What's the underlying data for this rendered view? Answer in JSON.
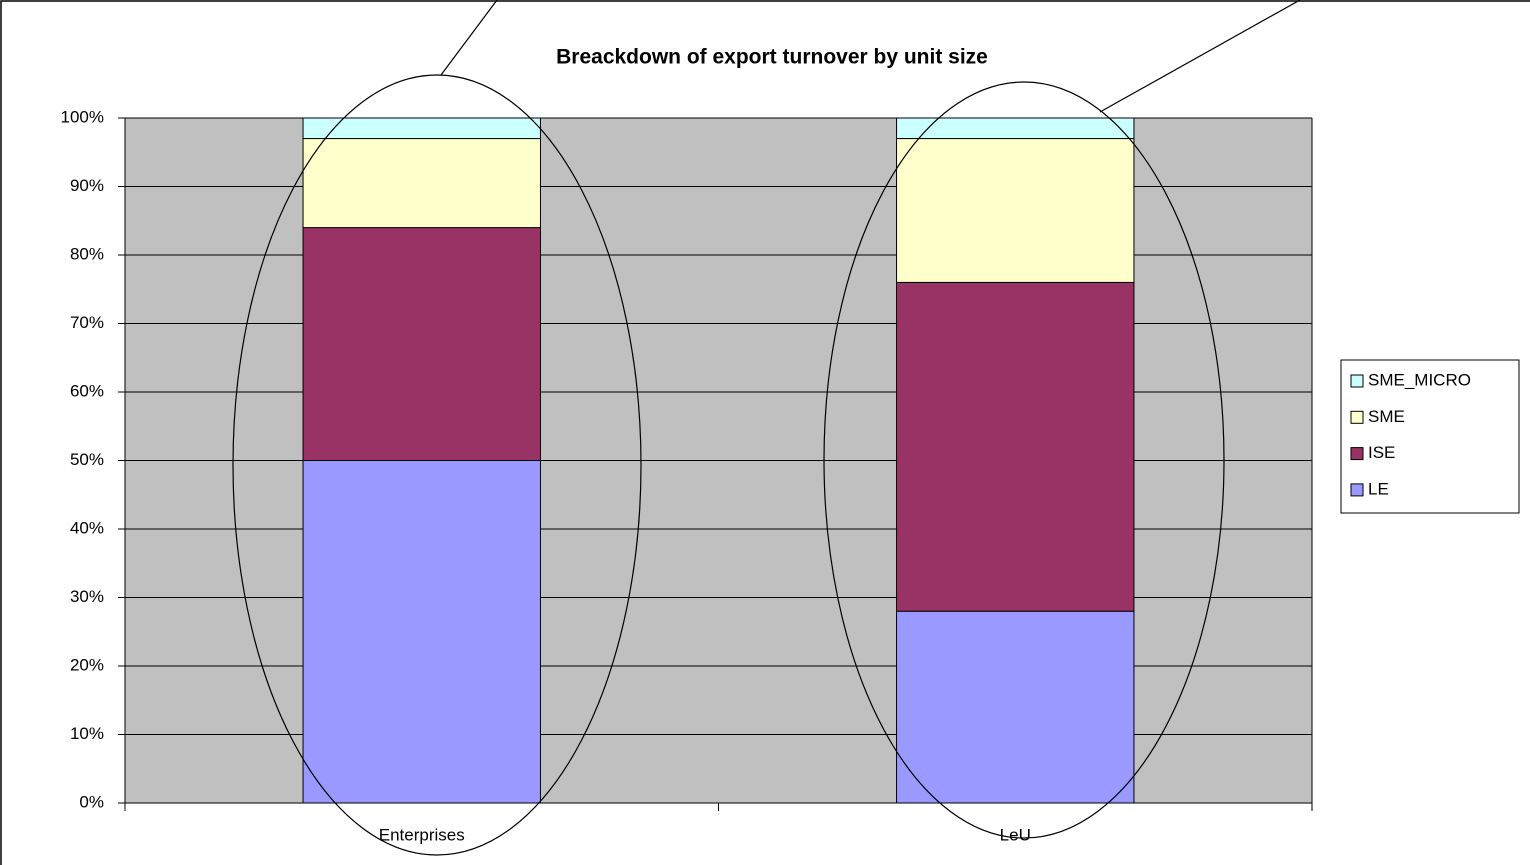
{
  "chart_data": {
    "type": "stacked_bar_100",
    "title": "Breackdown of export turnover by unit size",
    "categories": [
      "Enterprises",
      "LeU"
    ],
    "series": [
      {
        "name": "LE",
        "color": "#9999ff",
        "values": [
          50,
          28
        ]
      },
      {
        "name": "ISE",
        "color": "#993366",
        "values": [
          34,
          48
        ]
      },
      {
        "name": "SME",
        "color": "#ffffcc",
        "values": [
          13,
          21
        ]
      },
      {
        "name": "SME_MICRO",
        "color": "#ccffff",
        "values": [
          3,
          3
        ]
      }
    ],
    "ylim": [
      0,
      100
    ],
    "yticks": [
      {
        "value": 0,
        "label": "0%"
      },
      {
        "value": 10,
        "label": "10%"
      },
      {
        "value": 20,
        "label": "20%"
      },
      {
        "value": 30,
        "label": "30%"
      },
      {
        "value": 40,
        "label": "40%"
      },
      {
        "value": 50,
        "label": "50%"
      },
      {
        "value": 60,
        "label": "60%"
      },
      {
        "value": 70,
        "label": "70%"
      },
      {
        "value": 80,
        "label": "80%"
      },
      {
        "value": 90,
        "label": "90%"
      },
      {
        "value": 100,
        "label": "100%"
      }
    ],
    "grid": true,
    "legend": "right",
    "plot_background": "#c0c0c0"
  }
}
